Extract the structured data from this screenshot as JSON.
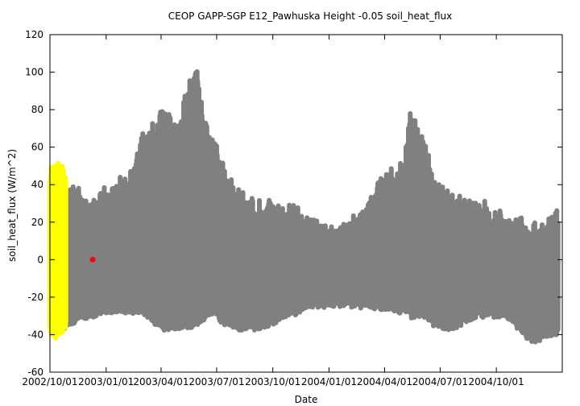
{
  "chart_data": {
    "type": "scatter",
    "title": "CEOP GAPP-SGP E12_Pawhuska Height -0.05 soil_heat_flux",
    "xlabel": "Date",
    "ylabel": "soil_heat_flux (W/m^2)",
    "ylim": [
      -60,
      120
    ],
    "xlim": [
      "2002-10-01",
      "2005-01-17"
    ],
    "grid": false,
    "legend": "none",
    "yticks": [
      -60,
      -40,
      -20,
      0,
      20,
      40,
      60,
      80,
      100,
      120
    ],
    "xticks": [
      "2002/10/01",
      "2003/01/01",
      "2003/04/01",
      "2003/07/01",
      "2003/10/01",
      "2004/01/01",
      "2004/04/01",
      "2004/07/01",
      "2004/10/01"
    ],
    "colors": {
      "main": "#808080",
      "highlight": "#ffff00",
      "marker": "#ff0000"
    },
    "series": [
      {
        "role": "main",
        "color": "#808080",
        "envelope": [
          {
            "date": "2002-10-20",
            "min": -38,
            "max": 38
          },
          {
            "date": "2002-11-15",
            "min": -33,
            "max": 36
          },
          {
            "date": "2002-12-15",
            "min": -30,
            "max": 34
          },
          {
            "date": "2003-01-15",
            "min": -28,
            "max": 40
          },
          {
            "date": "2003-02-15",
            "min": -28,
            "max": 50
          },
          {
            "date": "2003-03-01",
            "min": -28,
            "max": 67
          },
          {
            "date": "2003-03-20",
            "min": -35,
            "max": 72
          },
          {
            "date": "2003-04-10",
            "min": -38,
            "max": 80
          },
          {
            "date": "2003-04-25",
            "min": -37,
            "max": 72
          },
          {
            "date": "2003-05-20",
            "min": -37,
            "max": 100
          },
          {
            "date": "2003-05-28",
            "min": -35,
            "max": 105
          },
          {
            "date": "2003-06-15",
            "min": -30,
            "max": 72
          },
          {
            "date": "2003-07-01",
            "min": -30,
            "max": 60
          },
          {
            "date": "2003-07-15",
            "min": -35,
            "max": 48
          },
          {
            "date": "2003-08-10",
            "min": -38,
            "max": 35
          },
          {
            "date": "2003-09-01",
            "min": -37,
            "max": 30
          },
          {
            "date": "2003-09-20",
            "min": -37,
            "max": 30
          },
          {
            "date": "2003-10-10",
            "min": -33,
            "max": 28
          },
          {
            "date": "2003-11-01",
            "min": -30,
            "max": 28
          },
          {
            "date": "2003-12-01",
            "min": -25,
            "max": 22
          },
          {
            "date": "2004-01-01",
            "min": -25,
            "max": 18
          },
          {
            "date": "2004-02-01",
            "min": -25,
            "max": 20
          },
          {
            "date": "2004-03-01",
            "min": -25,
            "max": 30
          },
          {
            "date": "2004-04-01",
            "min": -27,
            "max": 45
          },
          {
            "date": "2004-05-01",
            "min": -28,
            "max": 50
          },
          {
            "date": "2004-05-15",
            "min": -31,
            "max": 80
          },
          {
            "date": "2004-06-01",
            "min": -30,
            "max": 68
          },
          {
            "date": "2004-06-20",
            "min": -35,
            "max": 45
          },
          {
            "date": "2004-07-15",
            "min": -38,
            "max": 35
          },
          {
            "date": "2004-08-15",
            "min": -33,
            "max": 32
          },
          {
            "date": "2004-09-15",
            "min": -30,
            "max": 28
          },
          {
            "date": "2004-10-15",
            "min": -30,
            "max": 25
          },
          {
            "date": "2004-11-15",
            "min": -40,
            "max": 20
          },
          {
            "date": "2004-12-01",
            "min": -45,
            "max": 18
          },
          {
            "date": "2004-12-20",
            "min": -42,
            "max": 18
          },
          {
            "date": "2005-01-10",
            "min": -40,
            "max": 32
          }
        ]
      },
      {
        "role": "highlight",
        "color": "#ffff00",
        "envelope": [
          {
            "date": "2002-10-01",
            "min": -40,
            "max": 48
          },
          {
            "date": "2002-10-10",
            "min": -42,
            "max": 50
          },
          {
            "date": "2002-10-20",
            "min": -40,
            "max": 48
          },
          {
            "date": "2002-10-27",
            "min": -36,
            "max": 45
          }
        ]
      },
      {
        "role": "marker",
        "color": "#ff0000",
        "points": [
          {
            "date": "2002-12-10",
            "value": 0
          }
        ]
      }
    ]
  }
}
